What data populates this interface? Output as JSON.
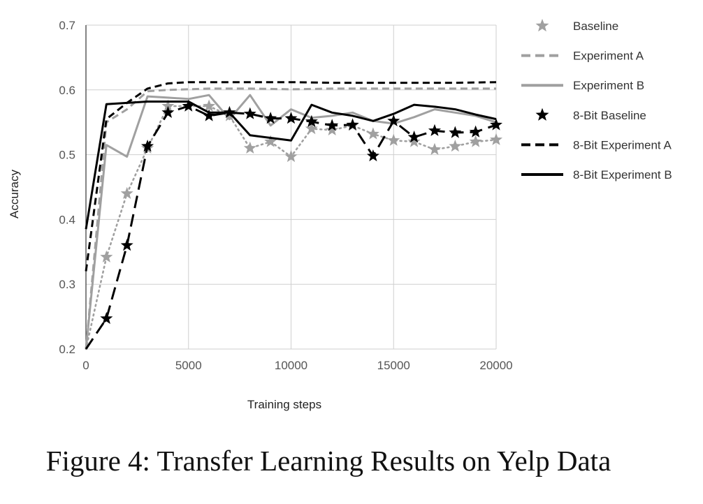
{
  "caption": "Figure 4: Transfer Learning Results on Yelp Data",
  "chart_data": {
    "type": "line",
    "xlabel": "Training steps",
    "ylabel": "Accuracy",
    "xlim": [
      0,
      20000
    ],
    "ylim": [
      0.2,
      0.7
    ],
    "xticks": [
      0,
      5000,
      10000,
      15000,
      20000
    ],
    "yticks": [
      0.2,
      0.3,
      0.4,
      0.5,
      0.6,
      0.7
    ],
    "grid": true,
    "legend_position": "right",
    "series": [
      {
        "name": "Baseline",
        "color": "#a0a0a0",
        "style": "dotted",
        "marker": "star",
        "points": [
          [
            0,
            0.2
          ],
          [
            1000,
            0.342
          ],
          [
            2000,
            0.44
          ],
          [
            3000,
            0.51
          ],
          [
            4000,
            0.575
          ],
          [
            5000,
            0.575
          ],
          [
            6000,
            0.575
          ],
          [
            7000,
            0.56
          ],
          [
            8000,
            0.51
          ],
          [
            9000,
            0.52
          ],
          [
            10000,
            0.497
          ],
          [
            11000,
            0.54
          ],
          [
            12000,
            0.538
          ],
          [
            13000,
            0.545
          ],
          [
            14000,
            0.532
          ],
          [
            15000,
            0.522
          ],
          [
            16000,
            0.52
          ],
          [
            17000,
            0.508
          ],
          [
            18000,
            0.513
          ],
          [
            19000,
            0.52
          ],
          [
            20000,
            0.523
          ]
        ]
      },
      {
        "name": "Experiment A",
        "color": "#a0a0a0",
        "style": "dashed",
        "marker": "none",
        "points": [
          [
            0,
            0.2
          ],
          [
            1000,
            0.55
          ],
          [
            2000,
            0.57
          ],
          [
            3000,
            0.598
          ],
          [
            4000,
            0.6
          ],
          [
            5000,
            0.601
          ],
          [
            6000,
            0.602
          ],
          [
            8000,
            0.602
          ],
          [
            10000,
            0.601
          ],
          [
            12000,
            0.602
          ],
          [
            14000,
            0.602
          ],
          [
            16000,
            0.602
          ],
          [
            18000,
            0.602
          ],
          [
            20000,
            0.602
          ]
        ]
      },
      {
        "name": "Experiment B",
        "color": "#a0a0a0",
        "style": "solid",
        "marker": "none",
        "points": [
          [
            0,
            0.2
          ],
          [
            1000,
            0.515
          ],
          [
            2000,
            0.497
          ],
          [
            3000,
            0.59
          ],
          [
            4000,
            0.588
          ],
          [
            5000,
            0.586
          ],
          [
            6000,
            0.592
          ],
          [
            7000,
            0.555
          ],
          [
            8000,
            0.592
          ],
          [
            9000,
            0.545
          ],
          [
            10000,
            0.57
          ],
          [
            11000,
            0.557
          ],
          [
            12000,
            0.56
          ],
          [
            13000,
            0.565
          ],
          [
            14000,
            0.552
          ],
          [
            15000,
            0.548
          ],
          [
            16000,
            0.558
          ],
          [
            17000,
            0.57
          ],
          [
            18000,
            0.565
          ],
          [
            19000,
            0.56
          ],
          [
            20000,
            0.55
          ]
        ]
      },
      {
        "name": "8-Bit Baseline",
        "color": "#000000",
        "style": "longdash",
        "marker": "star",
        "points": [
          [
            0,
            0.2
          ],
          [
            1000,
            0.247
          ],
          [
            2000,
            0.36
          ],
          [
            3000,
            0.513
          ],
          [
            4000,
            0.565
          ],
          [
            5000,
            0.575
          ],
          [
            6000,
            0.56
          ],
          [
            7000,
            0.565
          ],
          [
            8000,
            0.563
          ],
          [
            9000,
            0.556
          ],
          [
            10000,
            0.556
          ],
          [
            11000,
            0.551
          ],
          [
            12000,
            0.545
          ],
          [
            13000,
            0.546
          ],
          [
            14000,
            0.498
          ],
          [
            15000,
            0.552
          ],
          [
            16000,
            0.527
          ],
          [
            17000,
            0.537
          ],
          [
            18000,
            0.534
          ],
          [
            19000,
            0.535
          ],
          [
            20000,
            0.546
          ]
        ]
      },
      {
        "name": "8-Bit Experiment A",
        "color": "#000000",
        "style": "dashed",
        "marker": "none",
        "points": [
          [
            0,
            0.32
          ],
          [
            1000,
            0.555
          ],
          [
            2000,
            0.58
          ],
          [
            3000,
            0.602
          ],
          [
            4000,
            0.61
          ],
          [
            5000,
            0.612
          ],
          [
            6000,
            0.612
          ],
          [
            8000,
            0.612
          ],
          [
            10000,
            0.612
          ],
          [
            12000,
            0.611
          ],
          [
            14000,
            0.611
          ],
          [
            16000,
            0.611
          ],
          [
            18000,
            0.611
          ],
          [
            20000,
            0.612
          ]
        ]
      },
      {
        "name": "8-Bit Experiment B",
        "color": "#000000",
        "style": "solid",
        "marker": "none",
        "points": [
          [
            0,
            0.385
          ],
          [
            1000,
            0.578
          ],
          [
            2000,
            0.58
          ],
          [
            3000,
            0.582
          ],
          [
            4000,
            0.582
          ],
          [
            5000,
            0.582
          ],
          [
            6000,
            0.565
          ],
          [
            7000,
            0.565
          ],
          [
            8000,
            0.53
          ],
          [
            9000,
            0.526
          ],
          [
            10000,
            0.522
          ],
          [
            11000,
            0.577
          ],
          [
            12000,
            0.565
          ],
          [
            13000,
            0.56
          ],
          [
            14000,
            0.552
          ],
          [
            15000,
            0.563
          ],
          [
            16000,
            0.577
          ],
          [
            17000,
            0.574
          ],
          [
            18000,
            0.57
          ],
          [
            19000,
            0.562
          ],
          [
            20000,
            0.555
          ]
        ]
      }
    ]
  }
}
